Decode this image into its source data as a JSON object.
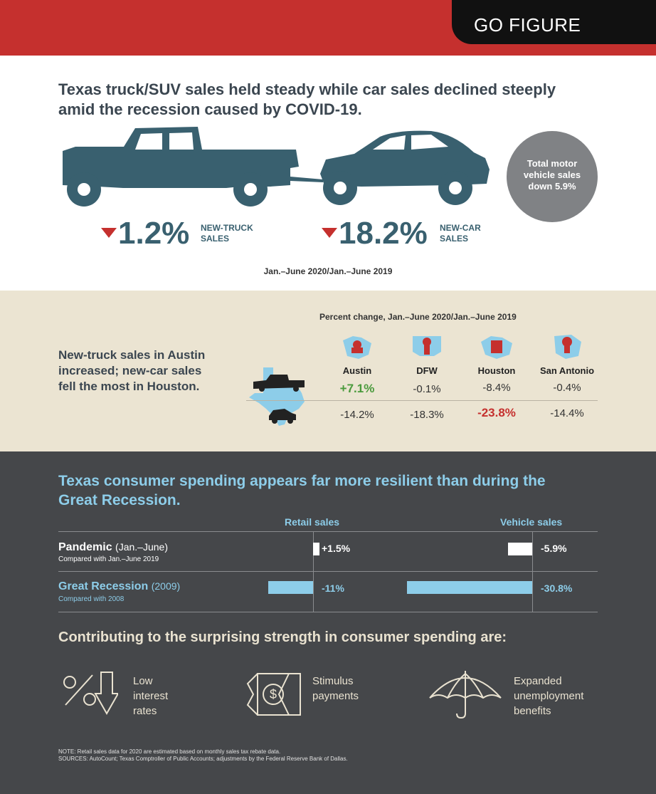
{
  "banner": {
    "label": "GO FIGURE"
  },
  "headline": "Texas truck/SUV sales held steady while car sales declined steeply amid the recession caused by COVID-19.",
  "truck_change": {
    "value": "1.2%",
    "label_line1": "NEW-TRUCK",
    "label_line2": "SALES"
  },
  "car_change": {
    "value": "18.2%",
    "label_line1": "NEW-CAR",
    "label_line2": "SALES"
  },
  "total_circle": {
    "line1": "Total motor",
    "line2": "vehicle sales",
    "line3": "down 5.9%"
  },
  "period_note": "Jan.–June 2020/Jan.–June 2019",
  "metro": {
    "title": "Percent change, Jan.–June 2020/Jan.–June 2019",
    "lead_line1": "New-truck sales in Austin",
    "lead_line2": "increased; new-car sales",
    "lead_line3": "fell the most in Houston.",
    "cities": [
      "Austin",
      "DFW",
      "Houston",
      "San Antonio"
    ],
    "truck_values": [
      "+7.1%",
      "-0.1%",
      "-8.4%",
      "-0.4%"
    ],
    "car_values": [
      "-14.2%",
      "-18.3%",
      "-23.8%",
      "-14.4%"
    ]
  },
  "spending": {
    "title": "Texas consumer spending appears far more resilient than during the Great Recession.",
    "col_retail": "Retail sales",
    "col_vehicle": "Vehicle sales",
    "rows": [
      {
        "name": "Pandemic",
        "period": "(Jan.–June)",
        "sub": "Compared with Jan.–June 2019",
        "retail_label": "+1.5%",
        "vehicle_label": "-5.9%"
      },
      {
        "name": "Great Recession",
        "period": "(2009)",
        "sub": "Compared with 2008",
        "retail_label": "-11%",
        "vehicle_label": "-30.8%"
      }
    ]
  },
  "chart_data": {
    "type": "bar",
    "categories": [
      "Pandemic (Jan.–June)",
      "Great Recession (2009)"
    ],
    "series": [
      {
        "name": "Retail sales",
        "values": [
          1.5,
          -11
        ]
      },
      {
        "name": "Vehicle sales",
        "values": [
          -5.9,
          -30.8
        ]
      }
    ],
    "metro_chart": {
      "type": "table",
      "categories": [
        "Austin",
        "DFW",
        "Houston",
        "San Antonio"
      ],
      "series": [
        {
          "name": "New-truck sales",
          "values": [
            7.1,
            -0.1,
            -8.4,
            -0.4
          ]
        },
        {
          "name": "New-car sales",
          "values": [
            -14.2,
            -18.3,
            -23.8,
            -14.4
          ]
        }
      ]
    },
    "headline_changes": {
      "new_truck_sales": -1.2,
      "new_car_sales": -18.2,
      "total_motor_vehicle_sales": -5.9
    }
  },
  "contributors": {
    "title": "Contributing to the surprising strength in consumer spending are:",
    "items": [
      {
        "icon": "percent-down-icon",
        "line1": "Low",
        "line2": "interest",
        "line3": "rates"
      },
      {
        "icon": "stimulus-dollar-icon",
        "line1": "Stimulus",
        "line2": "payments",
        "line3": ""
      },
      {
        "icon": "umbrella-icon",
        "line1": "Expanded",
        "line2": "unemployment",
        "line3": "benefits"
      }
    ]
  },
  "notes": {
    "note": "NOTE: Retail sales data for 2020 are estimated based on monthly sales tax rebate data.",
    "sources": "SOURCES: AutoCount; Texas Comptroller of Public Accounts; adjustments by the Federal Reserve Bank of Dallas."
  },
  "colors": {
    "red": "#c5302e",
    "teal": "#39606f",
    "lightblue": "#8dcde9",
    "beige": "#ebe4d2",
    "dark": "#45474a",
    "green": "#4a9a3c"
  }
}
